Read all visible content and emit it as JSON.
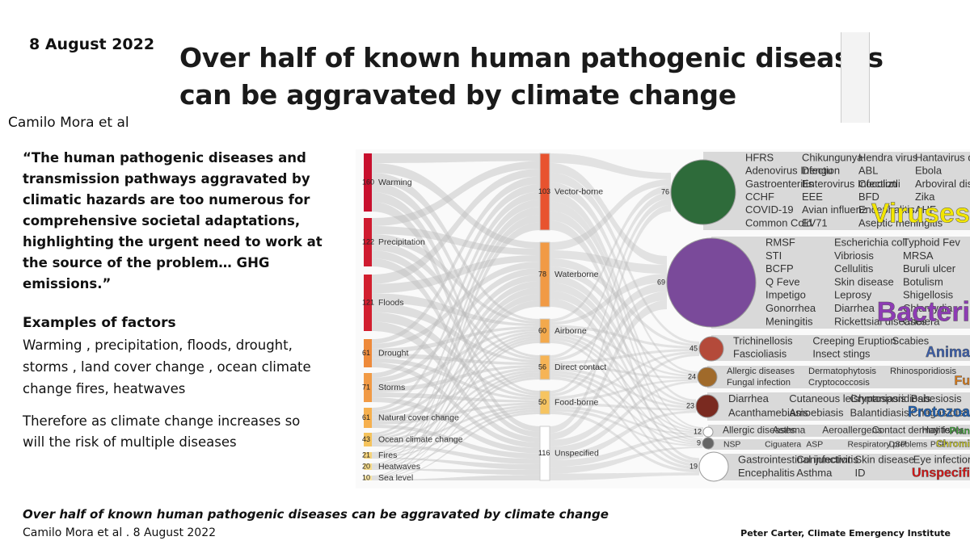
{
  "header": {
    "date": "8 August 2022",
    "title_lines": [
      "Over half of known human pathogenic diseases",
      "can be aggravated by climate change"
    ],
    "author": "Camilo Mora et al"
  },
  "quote_lines": [
    "“The human pathogenic diseases and",
    "transmission pathways aggravated by",
    "climatic hazards are too numerous for",
    "comprehensive societal adaptations,",
    "highlighting the urgent need to work at",
    "the source of the problem… GHG",
    "emissions.”"
  ],
  "examples": {
    "heading": "Examples of factors",
    "lines": [
      "Warming , precipitation, floods, drought,",
      "storms , land cover change , ocean climate",
      "change  fires,  heatwaves"
    ]
  },
  "conclusion_lines": [
    "Therefore as climate change increases so",
    "will the risk of multiple diseases"
  ],
  "figure": {
    "hazards": [
      {
        "count": "160",
        "label": "Warming"
      },
      {
        "count": "122",
        "label": "Precipitation"
      },
      {
        "count": "121",
        "label": "Floods"
      },
      {
        "count": "61",
        "label": "Drought"
      },
      {
        "count": "71",
        "label": "Storms"
      },
      {
        "count": "61",
        "label": "Natural cover change"
      },
      {
        "count": "43",
        "label": "Ocean climate change"
      },
      {
        "count": "21",
        "label": "Fires"
      },
      {
        "count": "20",
        "label": "Heatwaves"
      },
      {
        "count": "10",
        "label": "Sea level"
      }
    ],
    "pathways": [
      {
        "count": "103",
        "label": "Vector-borne"
      },
      {
        "count": "78",
        "label": "Waterborne"
      },
      {
        "count": "60",
        "label": "Airborne"
      },
      {
        "count": "56",
        "label": "Direct contact"
      },
      {
        "count": "50",
        "label": "Food-borne"
      },
      {
        "count": "116",
        "label": "Unspecified"
      }
    ],
    "pathogens": [
      {
        "count": "76",
        "label": "Viruses",
        "diseases": [
          "HFRS",
          "Chikungunya",
          "Hendra virus",
          "Hantavirus disease",
          "Adenovirus Infection",
          "Dengu",
          "ABL",
          "Ebola",
          "Gastroenteritis",
          "Enterovirus Infection",
          "Cocoliztli",
          "Arboviral disease",
          "CCHF",
          "EEE",
          "BFD",
          "Zika",
          "COVID-19",
          "Avian influenz",
          "Encephalitis",
          "AHF",
          "Common Cold",
          "EV71",
          "Aseptic meningitis"
        ]
      },
      {
        "count": "69",
        "label": "Bacteri",
        "diseases": [
          "RMSF",
          "Escherichia coli",
          "Typhoid Fev",
          "STI",
          "Vibriosis",
          "MRSA",
          "BCFP",
          "Cellulitis",
          "Buruli ulcer",
          "Q Feve",
          "Skin disease",
          "Botulism",
          "Impetigo",
          "Leprosy",
          "Shigellosis",
          "Gonorrhea",
          "Diarrhea",
          "Chlamydia",
          "Meningitis",
          "Rickettsial diseases",
          "Cholera"
        ]
      },
      {
        "count": "45",
        "label": "Anima",
        "diseases": [
          "Trichinellosis",
          "Creeping Eruption",
          "Scabies",
          "Fascioliasis",
          "Insect stings"
        ]
      },
      {
        "count": "24",
        "label": "Fu",
        "diseases": [
          "Allergic diseases",
          "Dermatophytosis",
          "Rhinosporidiosis",
          "Fungal infection",
          "Cryptococcosis"
        ]
      },
      {
        "count": "23",
        "label": "Protozoa",
        "diseases": [
          "Diarrhea",
          "Cutaneous leishmaniasis",
          "Cryptosporidiosis",
          "Babesiosis",
          "Acanthamebiasis",
          "Amoebiasis",
          "Balantidiasis",
          "Chagas disease"
        ]
      },
      {
        "count": "12",
        "label": "Plan",
        "diseases": [
          "Allergic diseases",
          "Asthma",
          "Aeroallergens",
          "Contact dermatitis",
          "Hay fever"
        ]
      },
      {
        "count": "9",
        "label": "Chromi",
        "diseases": [
          "NSP",
          "Ciguatera",
          "ASP",
          "Respiratory problems",
          "DSP",
          "PSP"
        ]
      },
      {
        "count": "19",
        "label": "Unspecifi",
        "diseases": [
          "Gastrointestinal infections",
          "Conjunctivitis",
          "Skin disease",
          "Eye infections",
          "Encephalitis",
          "Asthma",
          "ID"
        ]
      }
    ]
  },
  "footer": {
    "caption": "Over half of known human pathogenic diseases can be aggravated by climate change",
    "citation": "Camilo Mora et al . 8 August 2022",
    "credit": "Peter Carter, Climate Emergency Institute"
  }
}
